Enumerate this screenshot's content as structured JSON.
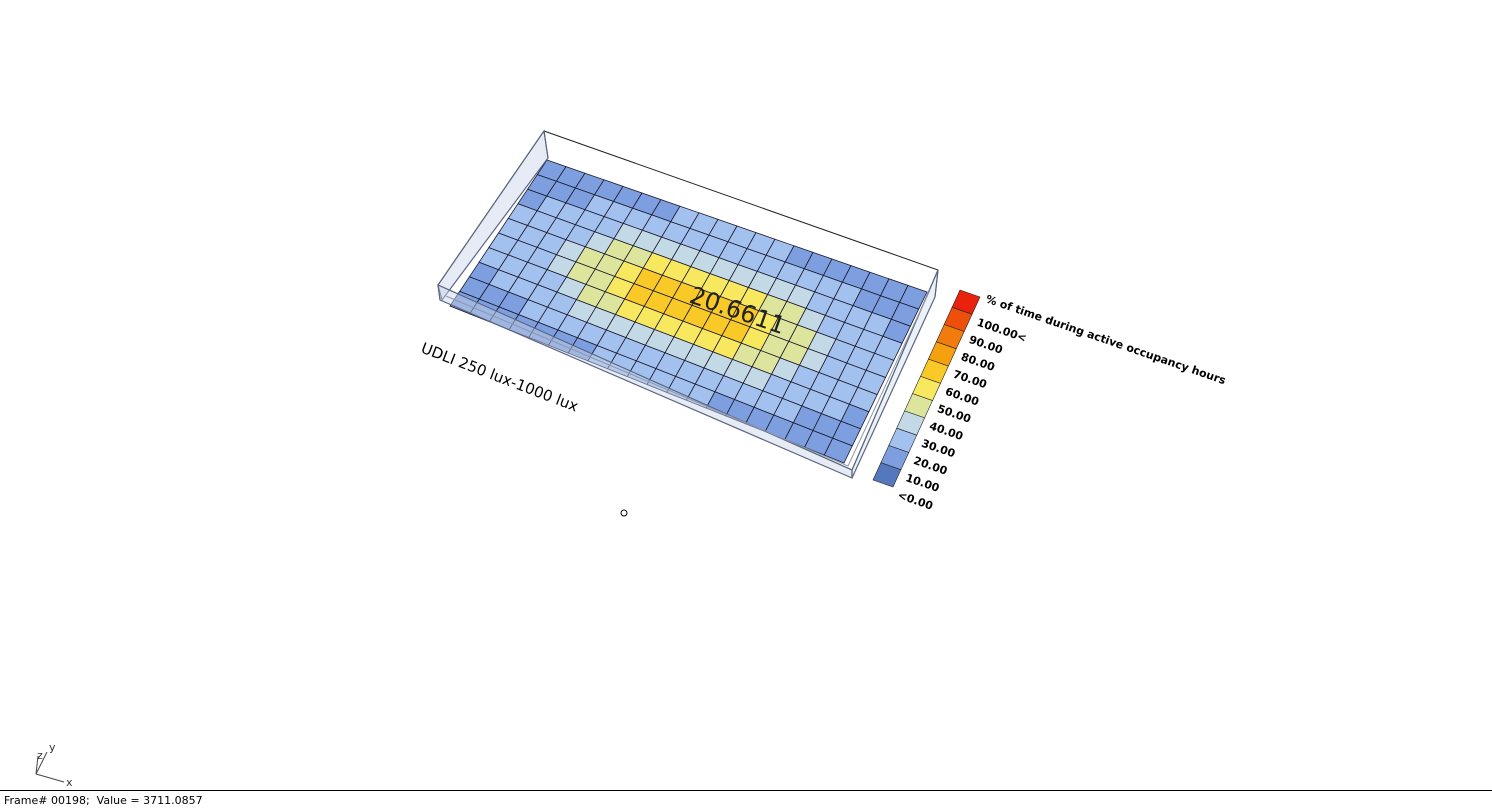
{
  "viewport": {
    "analysis_title": "UDLI 250 lux-1000 lux",
    "center_value": "20.6611",
    "grid": {
      "rows": 10,
      "cols": 20,
      "center_row": 4.5,
      "center_col": 9.5,
      "peak_percent": 62,
      "base_percent": 8
    },
    "legend": {
      "title": "% of time during active occupancy hours",
      "labels": [
        "100.00<",
        "90.00",
        "80.00",
        "70.00",
        "60.00",
        "50.00",
        "40.00",
        "30.00",
        "20.00",
        "10.00",
        "<0.00"
      ],
      "colors": [
        "#e8220c",
        "#ee4f0a",
        "#f17b0c",
        "#f5a10f",
        "#f9c928",
        "#f8e860",
        "#dde59c",
        "#c4d9e6",
        "#a3c1ee",
        "#7e9fdf",
        "#5577bb"
      ]
    },
    "axes": {
      "x": "x",
      "y": "y",
      "z": "z"
    }
  },
  "status_bar": {
    "text": "Frame# 00198;  Value = 3711.0857"
  }
}
